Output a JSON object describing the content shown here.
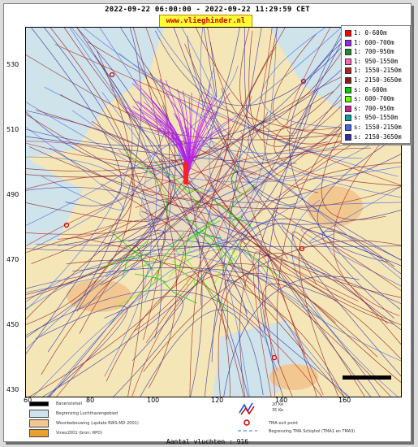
{
  "title": "2022-09-22 06:00:00 - 2022-09-22 11:29:59 CET",
  "brand": "www.vlieghinder.nl",
  "y_ticks": [
    "530",
    "510",
    "490",
    "470",
    "450",
    "430"
  ],
  "x_ticks": [
    "60",
    "80",
    "100",
    "120",
    "140",
    "160"
  ],
  "legend": [
    {
      "label": "1: 0-600m",
      "color": "#ff0000"
    },
    {
      "label": "1: 600-700m",
      "color": "#a020f0"
    },
    {
      "label": "1: 700-950m",
      "color": "#228b22"
    },
    {
      "label": "1: 950-1550m",
      "color": "#ff69b4"
    },
    {
      "label": "1: 1550-2150m",
      "color": "#b22222"
    },
    {
      "label": "1: 2150-3650m",
      "color": "#8b1a1a"
    },
    {
      "label": "s: 0-600m",
      "color": "#00cc00"
    },
    {
      "label": "s: 600-700m",
      "color": "#66ff00"
    },
    {
      "label": "s: 700-950m",
      "color": "#d02090"
    },
    {
      "label": "s: 950-1550m",
      "color": "#00a0a0"
    },
    {
      "label": "s: 1550-2150m",
      "color": "#4169e1"
    },
    {
      "label": "s: 2150-3650m",
      "color": "#3030a0"
    }
  ],
  "bottom_legend": {
    "baanstelsel": "Banenstelsel",
    "luchthaven": "Begrenzing Luchthavengebied",
    "woon": "Woonbebouwing (update RWS-MD 2001)",
    "vinex": "Vinex2001 (bron: RPD)",
    "db20": "20 Ke",
    "db35": "35 Ke",
    "tma_exit": "TMA exit point",
    "tma_border": "Begrenzing TMA Schiphol  (TMA1 en TMA3)"
  },
  "count_text": "Aantal vluchten : 916",
  "colors": {
    "land": "#f5e6b8",
    "water": "#cfe3ea",
    "urban": "#f2c890"
  }
}
